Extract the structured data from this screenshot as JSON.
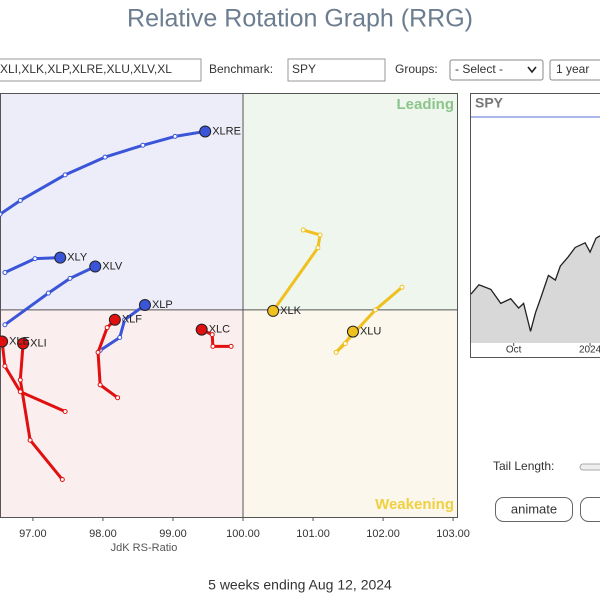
{
  "title": "Relative Rotation Graph (RRG)",
  "controls": {
    "symbols": "XLI,XLK,XLP,XLRE,XLU,XLV,XL",
    "benchmark_label": "Benchmark:",
    "benchmark": "SPY",
    "groups_label": "Groups:",
    "groups": "- Select -",
    "period": "1 year",
    "tail_length_label": "Tail Length:",
    "animate": "animate"
  },
  "footer": "5 weeks ending Aug 12, 2024",
  "chart_data": [
    {
      "type": "rrg",
      "xlabel": "JdK RS-Ratio",
      "quadrants": {
        "leading": "Leading",
        "weakening": "Weakening"
      },
      "xlim": [
        96.53,
        103.07
      ],
      "ylim": [
        97.9,
        102.2
      ],
      "crosshair": [
        100,
        100
      ],
      "xticks": [
        {
          "value": 97,
          "label": "97.00"
        },
        {
          "value": 98,
          "label": "98.00"
        },
        {
          "value": 99,
          "label": "99.00"
        },
        {
          "value": 100,
          "label": "100.00"
        },
        {
          "value": 101,
          "label": "101.00"
        },
        {
          "value": 102,
          "label": "102.00"
        },
        {
          "value": 103,
          "label": "103.00"
        }
      ],
      "series": [
        {
          "name": "XLRE",
          "color": "#3a55d8",
          "x": [
            96.53,
            96.82,
            97.46,
            98.03,
            98.57,
            99.03,
            99.46
          ],
          "y": [
            100.97,
            101.11,
            101.37,
            101.55,
            101.67,
            101.76,
            101.81
          ]
        },
        {
          "name": "XLY",
          "color": "#3a55d8",
          "x": [
            96.6,
            97.03,
            97.39
          ],
          "y": [
            100.38,
            100.52,
            100.53
          ]
        },
        {
          "name": "XLV",
          "color": "#3a55d8",
          "x": [
            96.6,
            97.22,
            97.53,
            97.89
          ],
          "y": [
            99.85,
            100.17,
            100.32,
            100.44
          ]
        },
        {
          "name": "XLP",
          "color": "#3a55d8",
          "x": [
            97.96,
            98.24,
            98.31,
            98.6
          ],
          "y": [
            99.59,
            99.72,
            99.9,
            100.05
          ]
        },
        {
          "name": "XLF",
          "color": "#e01010",
          "x": [
            98.21,
            97.96,
            97.93,
            98.06,
            98.17
          ],
          "y": [
            99.11,
            99.24,
            99.57,
            99.82,
            99.9
          ]
        },
        {
          "name": "XLC",
          "color": "#e01010",
          "x": [
            99.83,
            99.57,
            99.56,
            99.41
          ],
          "y": [
            99.63,
            99.63,
            99.75,
            99.8
          ]
        },
        {
          "name": "XLI",
          "color": "#e01010",
          "x": [
            97.42,
            96.96,
            96.82,
            96.86
          ],
          "y": [
            98.28,
            98.68,
            99.29,
            99.66
          ]
        },
        {
          "name": "XLE",
          "color": "#e01010",
          "x": [
            97.46,
            96.82,
            96.6,
            96.56
          ],
          "y": [
            98.97,
            99.17,
            99.43,
            99.68
          ]
        },
        {
          "name": "XLK",
          "color": "#f0c020",
          "x": [
            100.86,
            101.1,
            101.07,
            100.43
          ],
          "y": [
            100.81,
            100.76,
            100.63,
            99.99
          ]
        },
        {
          "name": "XLU",
          "color": "#f0c020",
          "x": [
            102.27,
            101.89,
            101.33,
            101.46,
            101.57
          ],
          "y": [
            100.23,
            100.0,
            99.57,
            99.66,
            99.78
          ]
        }
      ]
    },
    {
      "type": "area",
      "title": "SPY",
      "color": "#888888",
      "x": [
        0,
        8,
        20,
        30,
        40,
        48,
        53,
        60,
        65,
        70,
        78,
        85,
        90,
        98,
        105,
        115,
        120,
        126,
        130
      ],
      "values": [
        21,
        25,
        23,
        17,
        19,
        15,
        17,
        5,
        13,
        19,
        29,
        27,
        33,
        37,
        41,
        43,
        39,
        45,
        46
      ],
      "xlim": [
        0,
        130
      ],
      "ylim": [
        0,
        100
      ],
      "xticks": [
        {
          "value": 43,
          "label": "Oct"
        },
        {
          "value": 120,
          "label": "2024"
        }
      ]
    }
  ]
}
